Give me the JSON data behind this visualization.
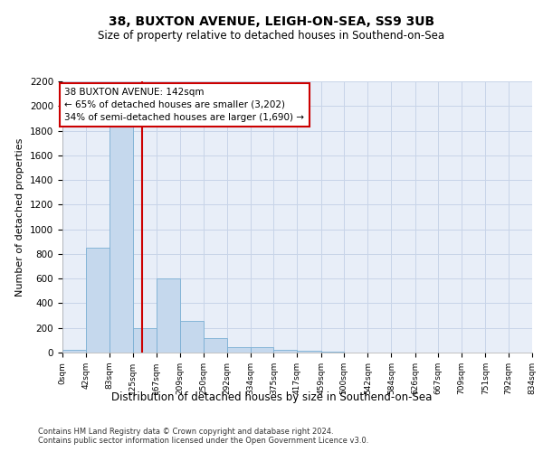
{
  "title_line1": "38, BUXTON AVENUE, LEIGH-ON-SEA, SS9 3UB",
  "title_line2": "Size of property relative to detached houses in Southend-on-Sea",
  "xlabel": "Distribution of detached houses by size in Southend-on-Sea",
  "ylabel": "Number of detached properties",
  "footer_line1": "Contains HM Land Registry data © Crown copyright and database right 2024.",
  "footer_line2": "Contains public sector information licensed under the Open Government Licence v3.0.",
  "annotation_title": "38 BUXTON AVENUE: 142sqm",
  "annotation_line1": "← 65% of detached houses are smaller (3,202)",
  "annotation_line2": "34% of semi-detached houses are larger (1,690) →",
  "property_size": 142,
  "bin_edges": [
    0,
    42,
    83,
    125,
    167,
    209,
    250,
    292,
    334,
    375,
    417,
    459,
    500,
    542,
    584,
    626,
    667,
    709,
    751,
    792,
    834
  ],
  "bin_labels": [
    "0sqm",
    "42sqm",
    "83sqm",
    "125sqm",
    "167sqm",
    "209sqm",
    "250sqm",
    "292sqm",
    "334sqm",
    "375sqm",
    "417sqm",
    "459sqm",
    "500sqm",
    "542sqm",
    "584sqm",
    "626sqm",
    "667sqm",
    "709sqm",
    "751sqm",
    "792sqm",
    "834sqm"
  ],
  "bar_heights": [
    20,
    850,
    1850,
    200,
    600,
    260,
    120,
    42,
    42,
    25,
    15,
    5,
    2,
    1,
    1,
    0,
    0,
    0,
    0,
    0
  ],
  "bar_color": "#c5d8ed",
  "bar_edgecolor": "#7aafd4",
  "redline_color": "#cc0000",
  "annotation_box_edgecolor": "#cc0000",
  "annotation_box_facecolor": "#ffffff",
  "grid_color": "#c8d4e8",
  "background_color": "#e8eef8",
  "fig_background": "#ffffff",
  "ylim": [
    0,
    2200
  ],
  "yticks": [
    0,
    200,
    400,
    600,
    800,
    1000,
    1200,
    1400,
    1600,
    1800,
    2000,
    2200
  ]
}
